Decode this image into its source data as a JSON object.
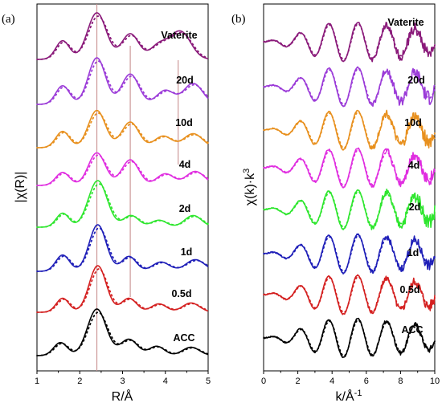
{
  "colors": {
    "ACC": "#000000",
    "0.5d": "#d42020",
    "1d": "#1f1fb8",
    "2d": "#2ee62e",
    "4d": "#e02ee0",
    "10d": "#e8901e",
    "20d": "#9b3bd8",
    "Vaterite": "#8a1a7a"
  },
  "chart_data": [
    {
      "panel": "(a)",
      "type": "line",
      "xlabel": "R/Å",
      "ylabel": "|χ(R)|",
      "xlim": [
        1,
        5
      ],
      "xticks": [
        "1",
        "2",
        "3",
        "4",
        "5"
      ],
      "reference_lines_x": [
        2.4,
        3.18,
        4.3
      ],
      "series": [
        {
          "name": "ACC",
          "peaks": [
            [
              1.55,
              0.28,
              0.16
            ],
            [
              2.4,
              1.0,
              0.22
            ],
            [
              3.15,
              0.35,
              0.2
            ],
            [
              3.8,
              0.2,
              0.18
            ],
            [
              4.6,
              0.18,
              0.2
            ]
          ]
        },
        {
          "name": "0.5d",
          "peaks": [
            [
              1.6,
              0.3,
              0.15
            ],
            [
              2.42,
              1.0,
              0.2
            ],
            [
              3.15,
              0.3,
              0.18
            ],
            [
              3.85,
              0.18,
              0.18
            ],
            [
              4.6,
              0.2,
              0.2
            ]
          ]
        },
        {
          "name": "1d",
          "peaks": [
            [
              1.6,
              0.35,
              0.16
            ],
            [
              2.42,
              1.0,
              0.2
            ],
            [
              3.15,
              0.32,
              0.17
            ],
            [
              3.9,
              0.2,
              0.2
            ],
            [
              4.7,
              0.25,
              0.22
            ]
          ]
        },
        {
          "name": "2d",
          "peaks": [
            [
              1.6,
              0.3,
              0.15
            ],
            [
              2.42,
              1.0,
              0.22
            ],
            [
              3.2,
              0.25,
              0.18
            ],
            [
              3.85,
              0.15,
              0.18
            ],
            [
              4.65,
              0.25,
              0.2
            ]
          ]
        },
        {
          "name": "4d",
          "peaks": [
            [
              1.6,
              0.28,
              0.16
            ],
            [
              2.4,
              0.7,
              0.2
            ],
            [
              3.18,
              0.55,
              0.2
            ],
            [
              4.0,
              0.25,
              0.2
            ],
            [
              4.7,
              0.3,
              0.22
            ]
          ]
        },
        {
          "name": "10d",
          "peaks": [
            [
              1.6,
              0.35,
              0.16
            ],
            [
              2.4,
              0.8,
              0.2
            ],
            [
              3.18,
              0.55,
              0.2
            ],
            [
              3.95,
              0.25,
              0.2
            ],
            [
              4.65,
              0.3,
              0.22
            ]
          ]
        },
        {
          "name": "20d",
          "peaks": [
            [
              1.6,
              0.4,
              0.16
            ],
            [
              2.4,
              1.0,
              0.2
            ],
            [
              3.18,
              0.65,
              0.2
            ],
            [
              4.0,
              0.3,
              0.2
            ],
            [
              4.65,
              0.45,
              0.22
            ]
          ]
        },
        {
          "name": "Vaterite",
          "peaks": [
            [
              1.6,
              0.4,
              0.16
            ],
            [
              2.4,
              1.0,
              0.22
            ],
            [
              3.18,
              0.55,
              0.2
            ],
            [
              3.85,
              0.3,
              0.2
            ],
            [
              4.35,
              0.6,
              0.24
            ]
          ]
        }
      ]
    },
    {
      "panel": "(b)",
      "type": "line",
      "xlabel": "k/Å",
      "xlabel_superscript": "-1",
      "ylabel": "χ(k)·k",
      "ylabel_superscript": "3",
      "xlim": [
        0,
        10
      ],
      "xticks": [
        "0",
        "2",
        "4",
        "6",
        "8",
        "10"
      ],
      "series": [
        {
          "name": "ACC",
          "frequency": 1.9,
          "phase": 0.3,
          "noise": 0.15
        },
        {
          "name": "0.5d",
          "frequency": 1.9,
          "phase": 0.3,
          "noise": 0.25
        },
        {
          "name": "1d",
          "frequency": 1.9,
          "phase": 0.3,
          "noise": 0.25
        },
        {
          "name": "2d",
          "frequency": 1.9,
          "phase": 0.3,
          "noise": 0.35
        },
        {
          "name": "4d",
          "frequency": 1.9,
          "phase": 0.3,
          "noise": 0.3
        },
        {
          "name": "10d",
          "frequency": 1.9,
          "phase": 0.3,
          "noise": 0.35
        },
        {
          "name": "20d",
          "frequency": 1.9,
          "phase": 0.3,
          "noise": 0.35
        },
        {
          "name": "Vaterite",
          "frequency": 1.9,
          "phase": 0.3,
          "noise": 0.3
        }
      ]
    }
  ]
}
